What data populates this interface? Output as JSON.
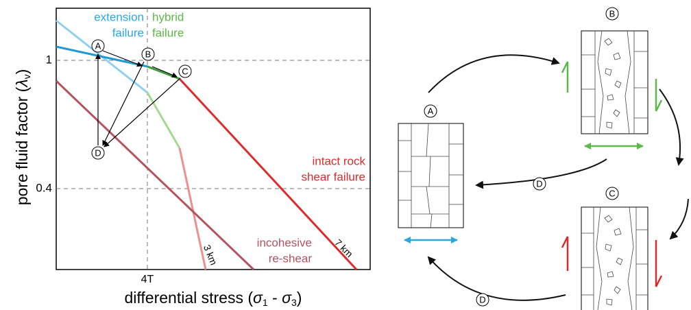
{
  "plot": {
    "y_label": [
      "pore fluid factor (",
      "λ",
      "v",
      ")"
    ],
    "x_label": [
      "differential stress (",
      "σ",
      "1",
      " - ",
      "σ",
      "3",
      ")"
    ],
    "y_ticks": [
      "1",
      "0.4"
    ],
    "x_ticks": [
      "4T"
    ],
    "annotations": {
      "extension": [
        "extension",
        "failure"
      ],
      "hybrid": [
        "hybrid",
        "failure"
      ],
      "intact": [
        "intact rock",
        "shear failure"
      ],
      "incohesive": [
        "incohesive",
        "re-shear"
      ],
      "depth_shallow": "3 km",
      "depth_deep": "7 km"
    },
    "points": [
      "A",
      "B",
      "C",
      "D"
    ]
  },
  "cycle": {
    "stages": [
      "A",
      "B",
      "C"
    ],
    "transitions": [
      "D",
      "D"
    ]
  }
}
